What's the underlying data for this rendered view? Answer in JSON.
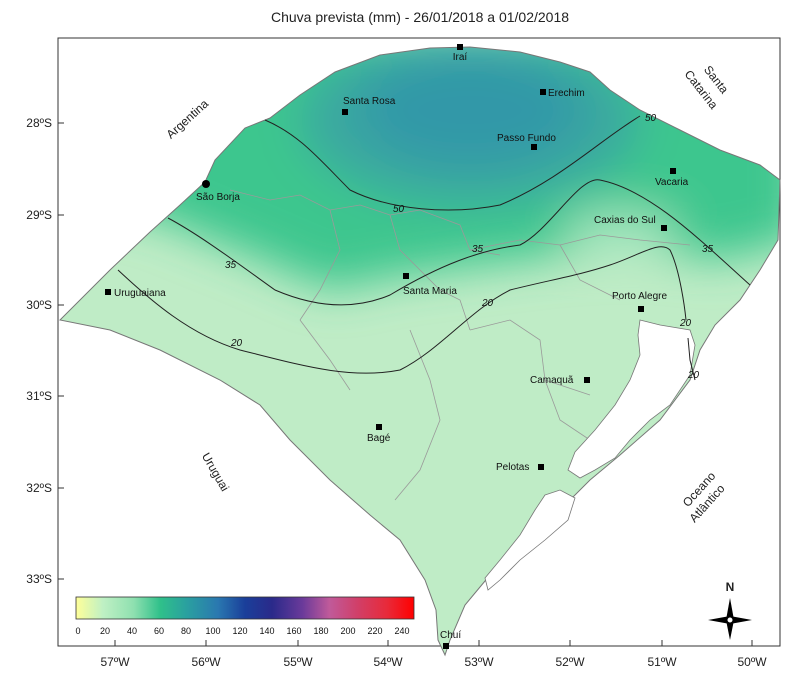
{
  "title": "Chuva prevista (mm) - 26/01/2018 a 01/02/2018",
  "lat_ticks": [
    "28ºS",
    "29ºS",
    "30ºS",
    "31ºS",
    "32ºS",
    "33ºS"
  ],
  "lon_ticks": [
    "57ºW",
    "56ºW",
    "55ºW",
    "54ºW",
    "53ºW",
    "52ºW",
    "51ºW",
    "50ºW"
  ],
  "cities": [
    {
      "name": "Iraí"
    },
    {
      "name": "Erechim"
    },
    {
      "name": "Santa Rosa"
    },
    {
      "name": "Passo Fundo"
    },
    {
      "name": "Vacaria"
    },
    {
      "name": "São Borja"
    },
    {
      "name": "Caxias do Sul"
    },
    {
      "name": "Uruguaiana"
    },
    {
      "name": "Santa Maria"
    },
    {
      "name": "Porto Alegre"
    },
    {
      "name": "Camaquã"
    },
    {
      "name": "Bagé"
    },
    {
      "name": "Pelotas"
    },
    {
      "name": "Chuí"
    }
  ],
  "regions": {
    "argentina": "Argentina",
    "santa_catarina_1": "Santa",
    "santa_catarina_2": "Catarina",
    "uruguai": "Uruguai",
    "oceano_1": "Oceano",
    "oceano_2": "Atlântico"
  },
  "isolines": [
    "50",
    "50",
    "35",
    "35",
    "35",
    "20",
    "20",
    "20",
    "20"
  ],
  "legend": {
    "values": [
      "0",
      "20",
      "40",
      "60",
      "80",
      "100",
      "120",
      "140",
      "160",
      "180",
      "200",
      "220",
      "240"
    ],
    "colors": [
      "#ffff99",
      "#bff0c4",
      "#8fe0b0",
      "#2fc08a",
      "#2a9fa0",
      "#2a78b0",
      "#1a3f9a",
      "#2a2a8a",
      "#6a3a9a",
      "#c05a9a",
      "#d0406a",
      "#e82a3a",
      "#ff0000"
    ]
  },
  "north_label": "N"
}
